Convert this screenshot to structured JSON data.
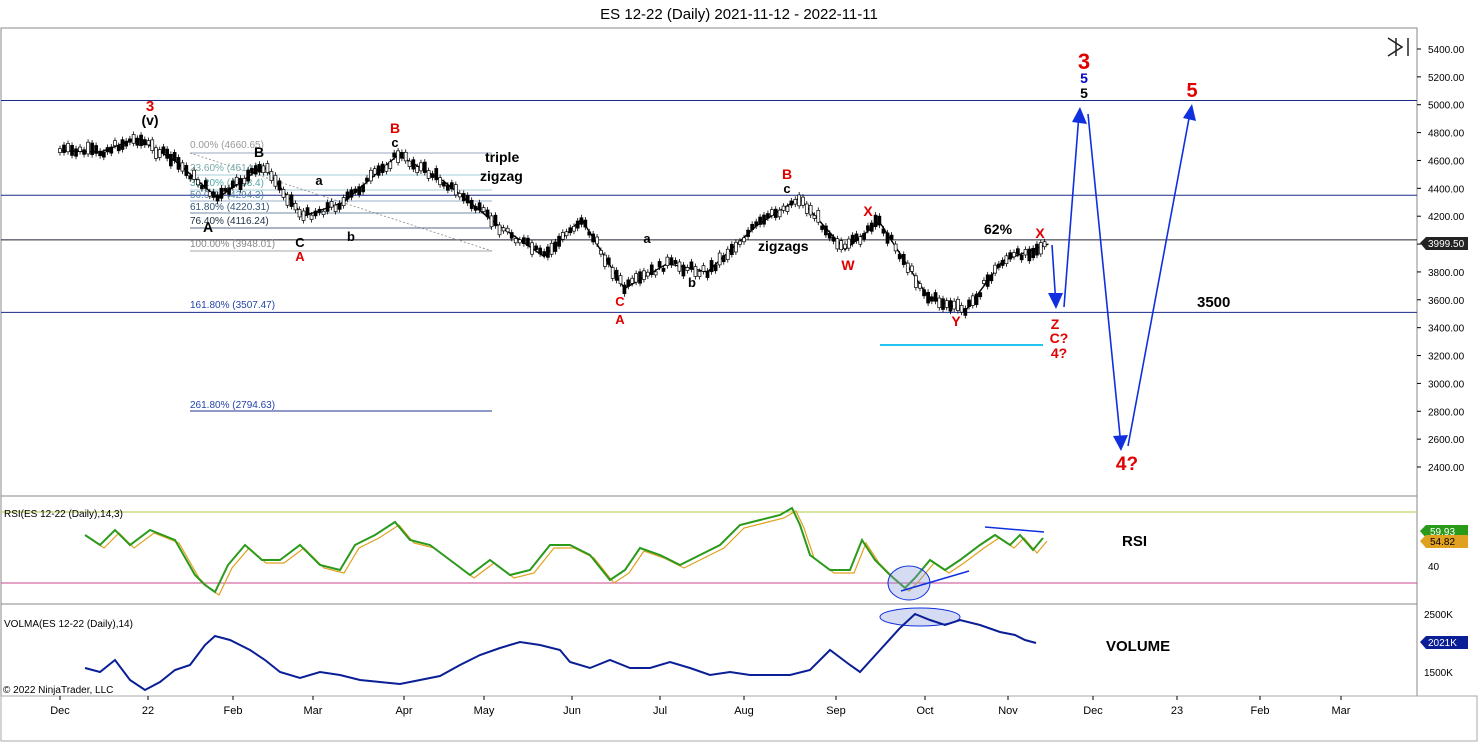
{
  "title": "ES 12-22 (Daily)  2021-11-12 - 2022-11-11",
  "copyright": "© 2022 NinjaTrader, LLC",
  "colors": {
    "up": "#ffffff",
    "down": "#000000",
    "wave_red": "#e00000",
    "wave_blue": "#0000cc",
    "fib_line": "#7788aa",
    "rsi_line": "#2a9a1a",
    "rsi_signal": "#e0a020",
    "volma_line": "#0a1e96",
    "current_price_bg": "#222222",
    "rsi_badge_a": "#2a9a1a",
    "rsi_badge_b": "#e0a020",
    "volma_badge": "#0a1e96",
    "cyan_line": "#22c4f0",
    "arrow": "#1030e0"
  },
  "panels": {
    "price": {
      "y_ticks": [
        "5400.00",
        "5200.00",
        "5000.00",
        "4800.00",
        "4600.00",
        "4400.00",
        "4200.00",
        "4000.00",
        "3800.00",
        "3600.00",
        "3400.00",
        "3200.00",
        "3000.00",
        "2800.00",
        "2600.00",
        "2400.00"
      ],
      "y_range": [
        2200,
        5500
      ],
      "current_price": "3999.50"
    },
    "rsi": {
      "label": "RSI(ES 12-22 (Daily),14,3)",
      "tick": "40",
      "badge_a": "59.93",
      "badge_b": "54.82",
      "annotation": "RSI"
    },
    "volma": {
      "label": "VOLMA(ES 12-22 (Daily),14)",
      "ticks": [
        "2500K",
        "1500K"
      ],
      "badge": "2021K",
      "annotation": "VOLUME"
    }
  },
  "x_axis_labels": [
    "Dec",
    "22",
    "Feb",
    "Mar",
    "Apr",
    "May",
    "Jun",
    "Jul",
    "Aug",
    "Sep",
    "Oct",
    "Nov",
    "Dec",
    "23",
    "Feb",
    "Mar"
  ],
  "fib_labels": [
    "0.00% (4660.65)",
    "23.60% (4514.2)",
    "38.20% (4388.4)",
    "50.00% (4294.3)",
    "61.80% (4220.31)",
    "76.40% (4116.24)",
    "100.00% (3948.01)",
    "161.80% (3507.47)",
    "261.80% (2794.63)"
  ],
  "annotations": {
    "triple": "triple",
    "zigzag": "zigzag",
    "zigzags": "zigzags",
    "pct62": "62%",
    "level3500": "3500",
    "wave_3_red_top": "3",
    "wave_5_blue": "5",
    "wave_5_black": "5",
    "wave_5_red": "5",
    "wave_4q": "4?",
    "wave_3_red_left": "3",
    "wave_v": "(v)",
    "B_black": "B",
    "A_black": "A",
    "C_black": "C",
    "A_red1": "A",
    "a1": "a",
    "b1": "b",
    "B_red1": "B",
    "c1": "c",
    "C_red2": "C",
    "A_red2": "A",
    "a2": "a",
    "b2": "b",
    "B_red2": "B",
    "c2": "c",
    "X_red1": "X",
    "W_red": "W",
    "Y_red": "Y",
    "X_red2": "X",
    "Z_red": "Z",
    "Cq_red": "C?",
    "fourq_small": "4?"
  },
  "chart_data": {
    "type": "line",
    "title": "ES 12-22 (Daily)  2021-11-12 - 2022-11-11",
    "x": [
      "2021-12-01",
      "2021-12-15",
      "2021-12-28",
      "2022-01-10",
      "2022-01-25",
      "2022-02-10",
      "2022-02-24",
      "2022-03-10",
      "2022-03-29",
      "2022-04-14",
      "2022-05-02",
      "2022-05-19",
      "2022-06-01",
      "2022-06-16",
      "2022-07-01",
      "2022-07-15",
      "2022-08-01",
      "2022-08-16",
      "2022-09-01",
      "2022-09-13",
      "2022-09-30",
      "2022-10-13",
      "2022-10-26",
      "2022-11-11"
    ],
    "series": [
      {
        "values": [
          4670,
          4660,
          4760,
          4600,
          4330,
          4560,
          4200,
          4300,
          4640,
          4450,
          4150,
          3910,
          4180,
          3680,
          3860,
          3800,
          4130,
          4330,
          3960,
          4160,
          3620,
          3520,
          3880,
          4000
        ]
      }
    ],
    "ylim": [
      2200,
      5500
    ],
    "horizontal_levels": [
      5030,
      4350,
      4030,
      3510
    ],
    "rsi": {
      "ylim": [
        0,
        100
      ],
      "badge_values": [
        59.93,
        54.82
      ]
    },
    "volma": {
      "badge_value": "2021K"
    }
  }
}
